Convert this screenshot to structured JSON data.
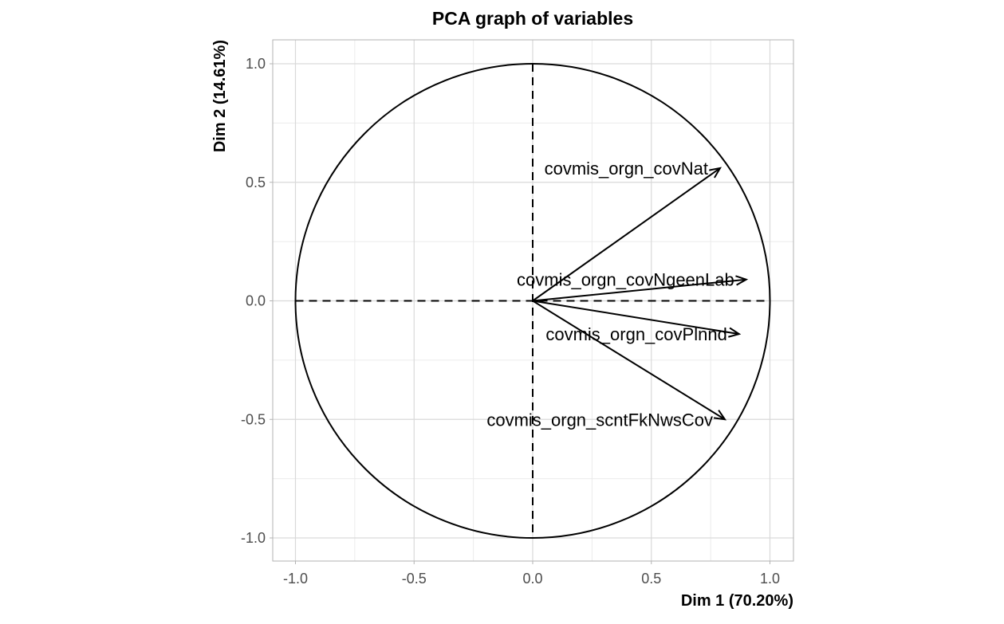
{
  "chart_data": {
    "type": "scatter",
    "title": "PCA graph of variables",
    "xlabel": "Dim 1 (70.20%)",
    "ylabel": "Dim 2 (14.61%)",
    "xlim": [
      -1.1,
      1.1
    ],
    "ylim": [
      -1.1,
      1.1
    ],
    "xticks": [
      -1.0,
      -0.5,
      0.0,
      0.5,
      1.0
    ],
    "yticks": [
      -1.0,
      -0.5,
      0.0,
      0.5,
      1.0
    ],
    "xtick_labels": [
      "-1.0",
      "-0.5",
      "0.0",
      "0.5",
      "1.0"
    ],
    "ytick_labels": [
      "-1.0",
      "-0.5",
      "0.0",
      "0.5",
      "1.0"
    ],
    "grid": true,
    "unit_circle": true,
    "variables": [
      {
        "label": "covmis_orgn_covNat",
        "x": 0.79,
        "y": 0.56
      },
      {
        "label": "covmis_orgn_covNgeenLab",
        "x": 0.9,
        "y": 0.09
      },
      {
        "label": "covmis_orgn_covPlnnd",
        "x": 0.87,
        "y": -0.14
      },
      {
        "label": "covmis_orgn_scntFkNwsCov",
        "x": 0.81,
        "y": -0.5
      }
    ],
    "colors": {
      "arrows": "#000000",
      "grid_major": "#d9d9d9",
      "grid_minor": "#ebebeb",
      "panel_border": "#b3b3b3",
      "tick_text": "#4d4d4d"
    }
  }
}
